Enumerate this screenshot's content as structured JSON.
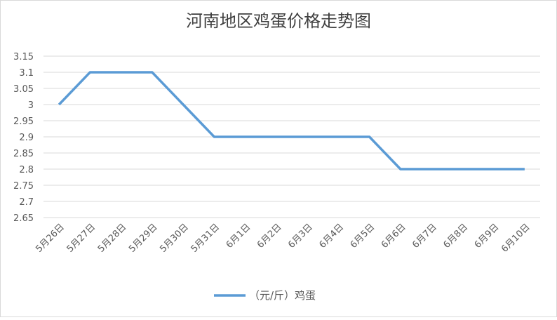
{
  "chart_data": {
    "type": "line",
    "title": "河南地区鸡蛋价格走势图",
    "categories": [
      "5月26日",
      "5月27日",
      "5月28日",
      "5月29日",
      "5月30日",
      "5月31日",
      "6月1日",
      "6月2日",
      "6月3日",
      "6月4日",
      "6月5日",
      "6月6日",
      "6月7日",
      "6月8日",
      "6月9日",
      "6月10日"
    ],
    "series": [
      {
        "name": "（元/斤）鸡蛋",
        "color": "#5b9bd5",
        "values": [
          3,
          3.1,
          3.1,
          3.1,
          3,
          2.9,
          2.9,
          2.9,
          2.9,
          2.9,
          2.9,
          2.8,
          2.8,
          2.8,
          2.8,
          2.8
        ]
      }
    ],
    "ylim": [
      2.65,
      3.15
    ],
    "yticks": [
      2.65,
      2.7,
      2.75,
      2.8,
      2.85,
      2.9,
      2.95,
      3,
      3.05,
      3.1,
      3.15
    ],
    "grid": true,
    "legend": "bottom"
  }
}
